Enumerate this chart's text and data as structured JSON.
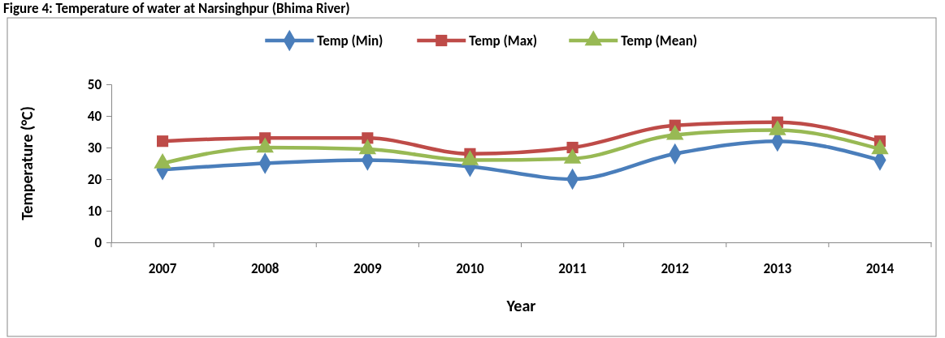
{
  "chart_data": {
    "type": "line",
    "title": "Figure 4: Temperature of water at Narsinghpur (Bhima River)",
    "xlabel": "Year",
    "ylabel": "Temperature (°C)",
    "categories": [
      "2007",
      "2008",
      "2009",
      "2010",
      "2011",
      "2012",
      "2013",
      "2014"
    ],
    "series": [
      {
        "name": "Temp (Min)",
        "color": "#4a7ebb",
        "marker": "diamond",
        "values": [
          23,
          25,
          26,
          24,
          20,
          28,
          32,
          26
        ]
      },
      {
        "name": "Temp (Max)",
        "color": "#be4b48",
        "marker": "square",
        "values": [
          32,
          33,
          33,
          28,
          30,
          37,
          38,
          32
        ]
      },
      {
        "name": "Temp (Mean)",
        "color": "#98b954",
        "marker": "triangle",
        "values": [
          25,
          30,
          29.5,
          26,
          26.5,
          34,
          35.5,
          29.5
        ]
      }
    ],
    "ylim": [
      0,
      50
    ],
    "yticks": [
      0,
      10,
      20,
      30,
      40,
      50
    ],
    "grid": false,
    "legend": "top"
  }
}
